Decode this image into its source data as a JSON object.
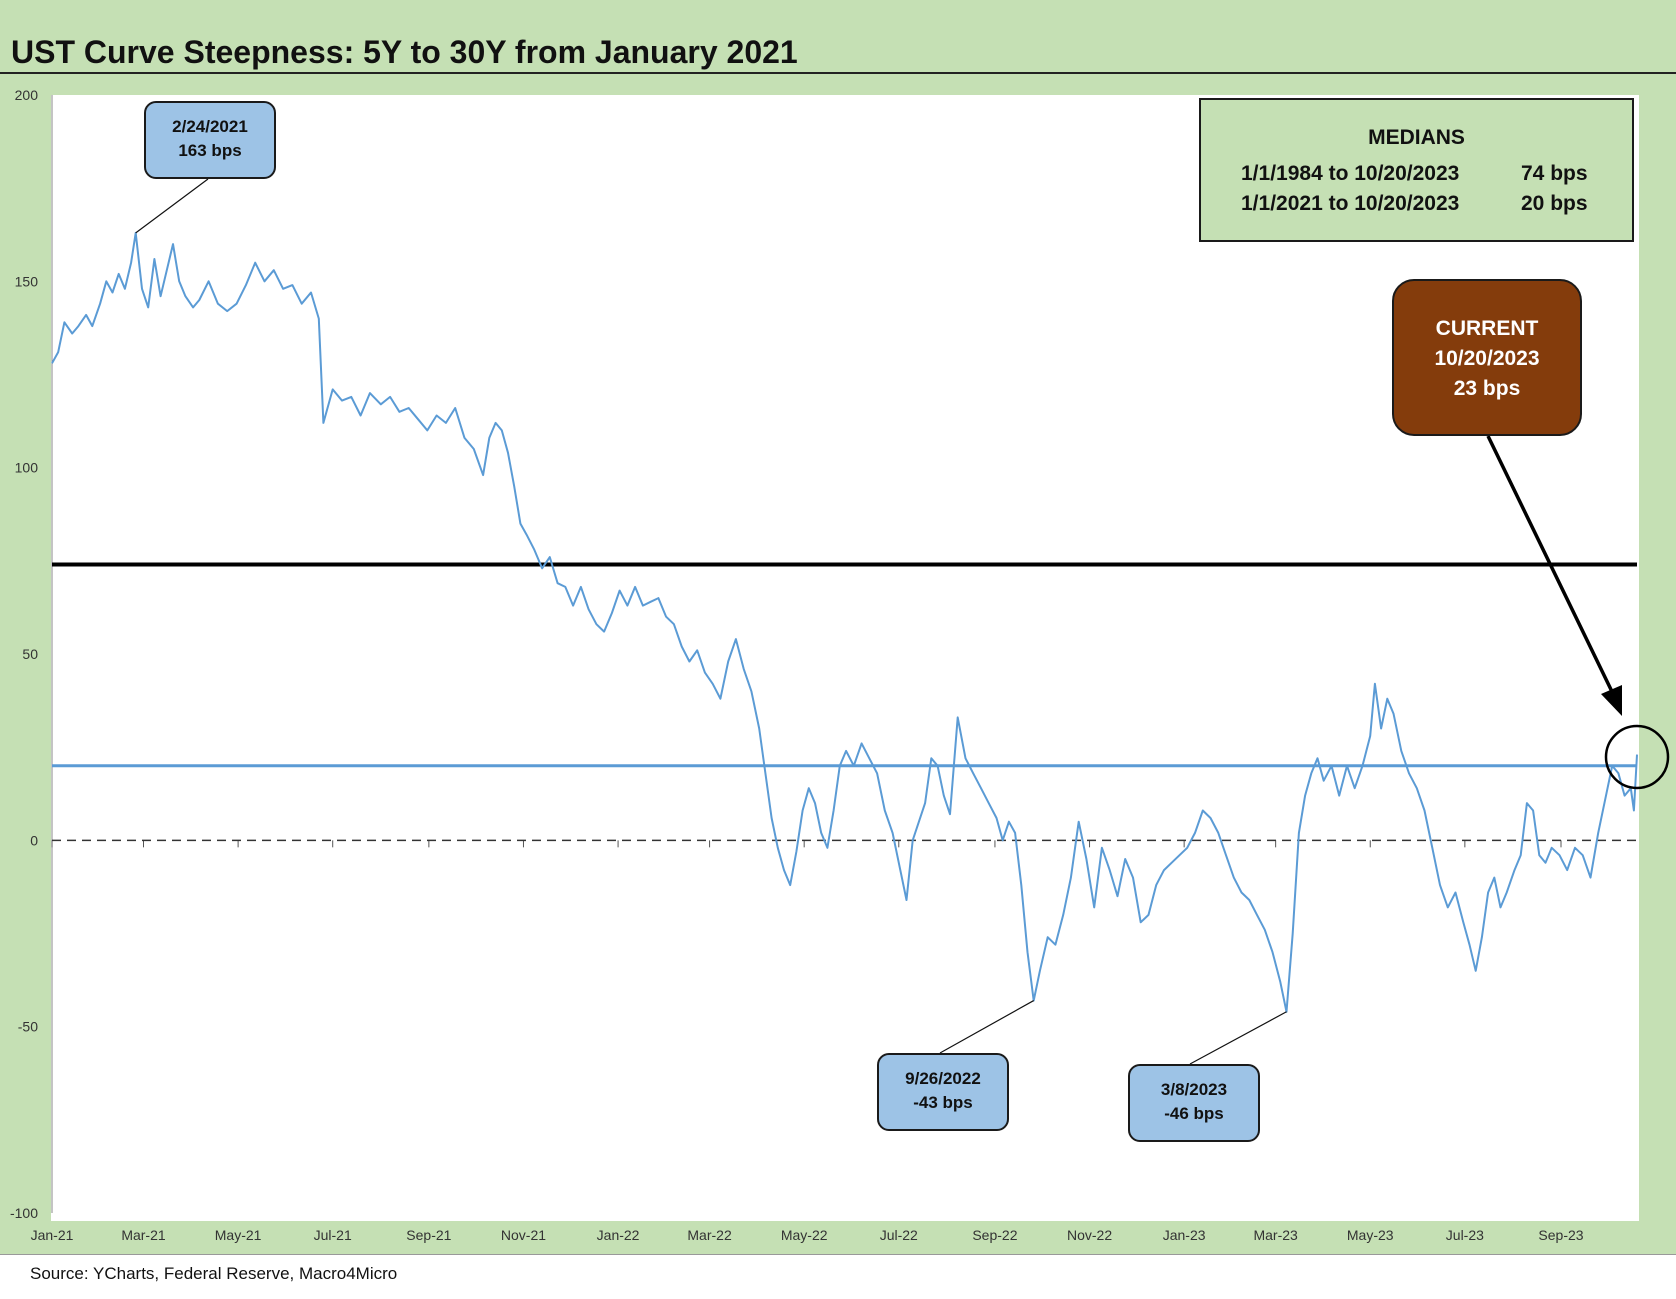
{
  "title": "UST Curve Steepness: 5Y to 30Y from January 2021",
  "source": "Source: YCharts, Federal Reserve, Macro4Micro",
  "colors": {
    "frame": "#c5e0b4",
    "series": "#5b9bd5",
    "median_recent_line": "#5b9bd5",
    "median_long_line": "#000000",
    "callout_fill": "#9dc3e6",
    "current_fill": "#843c0c"
  },
  "medians_box": {
    "title": "MEDIANS",
    "rows": [
      {
        "label": "1/1/1984 to 10/20/2023",
        "value": "74 bps"
      },
      {
        "label": "1/1/2021 to 10/20/2023",
        "value": "20 bps"
      }
    ]
  },
  "current_box": {
    "line1": "CURRENT",
    "line2": "10/20/2023",
    "line3": "23 bps"
  },
  "callouts": [
    {
      "date_label": "2/24/2021",
      "value_label": "163 bps",
      "x": "2021-02-24",
      "y": 163
    },
    {
      "date_label": "9/26/2022",
      "value_label": "-43 bps",
      "x": "2022-09-26",
      "y": -43
    },
    {
      "date_label": "3/8/2023",
      "value_label": "-46 bps",
      "x": "2023-03-08",
      "y": -46
    }
  ],
  "chart_data": {
    "type": "line",
    "title": "UST Curve Steepness: 5Y to 30Y from January 2021",
    "xlabel": "",
    "ylabel": "",
    "ylim": [
      -100,
      200
    ],
    "xlim": [
      "2021-01-01",
      "2023-10-20"
    ],
    "y_ticks": [
      200,
      150,
      100,
      50,
      0,
      -50,
      -100
    ],
    "x_ticks": [
      "Jan-21",
      "Mar-21",
      "May-21",
      "Jul-21",
      "Sep-21",
      "Nov-21",
      "Jan-22",
      "Mar-22",
      "May-22",
      "Jul-22",
      "Sep-22",
      "Nov-22",
      "Jan-23",
      "Mar-23",
      "May-23",
      "Jul-23",
      "Sep-23"
    ],
    "grid": false,
    "reference_lines": [
      {
        "y": 74,
        "style": "solid",
        "color": "#000000"
      },
      {
        "y": 20,
        "style": "solid",
        "color": "#5b9bd5"
      },
      {
        "y": 0,
        "style": "dashed",
        "color": "#333333"
      }
    ],
    "series": [
      {
        "points": [
          [
            "2021-01-01",
            128
          ],
          [
            "2021-01-05",
            131
          ],
          [
            "2021-01-09",
            139
          ],
          [
            "2021-01-14",
            136
          ],
          [
            "2021-01-18",
            138
          ],
          [
            "2021-01-23",
            141
          ],
          [
            "2021-01-27",
            138
          ],
          [
            "2021-02-01",
            144
          ],
          [
            "2021-02-05",
            150
          ],
          [
            "2021-02-09",
            147
          ],
          [
            "2021-02-13",
            152
          ],
          [
            "2021-02-17",
            148
          ],
          [
            "2021-02-21",
            155
          ],
          [
            "2021-02-24",
            163
          ],
          [
            "2021-02-28",
            148
          ],
          [
            "2021-03-04",
            143
          ],
          [
            "2021-03-08",
            156
          ],
          [
            "2021-03-12",
            146
          ],
          [
            "2021-03-16",
            153
          ],
          [
            "2021-03-20",
            160
          ],
          [
            "2021-03-24",
            150
          ],
          [
            "2021-03-28",
            146
          ],
          [
            "2021-04-02",
            143
          ],
          [
            "2021-04-06",
            145
          ],
          [
            "2021-04-12",
            150
          ],
          [
            "2021-04-18",
            144
          ],
          [
            "2021-04-24",
            142
          ],
          [
            "2021-04-30",
            144
          ],
          [
            "2021-05-06",
            149
          ],
          [
            "2021-05-12",
            155
          ],
          [
            "2021-05-18",
            150
          ],
          [
            "2021-05-24",
            153
          ],
          [
            "2021-05-30",
            148
          ],
          [
            "2021-06-05",
            149
          ],
          [
            "2021-06-11",
            144
          ],
          [
            "2021-06-17",
            147
          ],
          [
            "2021-06-22",
            140
          ],
          [
            "2021-06-25",
            112
          ],
          [
            "2021-07-01",
            121
          ],
          [
            "2021-07-07",
            118
          ],
          [
            "2021-07-13",
            119
          ],
          [
            "2021-07-19",
            114
          ],
          [
            "2021-07-25",
            120
          ],
          [
            "2021-08-01",
            117
          ],
          [
            "2021-08-07",
            119
          ],
          [
            "2021-08-13",
            115
          ],
          [
            "2021-08-19",
            116
          ],
          [
            "2021-08-25",
            113
          ],
          [
            "2021-08-31",
            110
          ],
          [
            "2021-09-06",
            114
          ],
          [
            "2021-09-12",
            112
          ],
          [
            "2021-09-18",
            116
          ],
          [
            "2021-09-24",
            108
          ],
          [
            "2021-09-30",
            105
          ],
          [
            "2021-10-06",
            98
          ],
          [
            "2021-10-10",
            108
          ],
          [
            "2021-10-14",
            112
          ],
          [
            "2021-10-18",
            110
          ],
          [
            "2021-10-22",
            104
          ],
          [
            "2021-10-26",
            95
          ],
          [
            "2021-10-30",
            85
          ],
          [
            "2021-11-03",
            82
          ],
          [
            "2021-11-08",
            78
          ],
          [
            "2021-11-13",
            73
          ],
          [
            "2021-11-18",
            76
          ],
          [
            "2021-11-23",
            69
          ],
          [
            "2021-11-28",
            68
          ],
          [
            "2021-12-03",
            63
          ],
          [
            "2021-12-08",
            68
          ],
          [
            "2021-12-13",
            62
          ],
          [
            "2021-12-18",
            58
          ],
          [
            "2021-12-23",
            56
          ],
          [
            "2021-12-28",
            61
          ],
          [
            "2022-01-02",
            67
          ],
          [
            "2022-01-07",
            63
          ],
          [
            "2022-01-12",
            68
          ],
          [
            "2022-01-17",
            63
          ],
          [
            "2022-01-22",
            64
          ],
          [
            "2022-01-27",
            65
          ],
          [
            "2022-02-01",
            60
          ],
          [
            "2022-02-06",
            58
          ],
          [
            "2022-02-11",
            52
          ],
          [
            "2022-02-16",
            48
          ],
          [
            "2022-02-21",
            51
          ],
          [
            "2022-02-26",
            45
          ],
          [
            "2022-03-03",
            42
          ],
          [
            "2022-03-08",
            38
          ],
          [
            "2022-03-13",
            48
          ],
          [
            "2022-03-18",
            54
          ],
          [
            "2022-03-23",
            46
          ],
          [
            "2022-03-28",
            40
          ],
          [
            "2022-04-02",
            30
          ],
          [
            "2022-04-06",
            18
          ],
          [
            "2022-04-10",
            6
          ],
          [
            "2022-04-14",
            -2
          ],
          [
            "2022-04-18",
            -8
          ],
          [
            "2022-04-22",
            -12
          ],
          [
            "2022-04-26",
            -3
          ],
          [
            "2022-04-30",
            8
          ],
          [
            "2022-05-04",
            14
          ],
          [
            "2022-05-08",
            10
          ],
          [
            "2022-05-12",
            2
          ],
          [
            "2022-05-16",
            -2
          ],
          [
            "2022-05-20",
            8
          ],
          [
            "2022-05-24",
            20
          ],
          [
            "2022-05-28",
            24
          ],
          [
            "2022-06-02",
            20
          ],
          [
            "2022-06-07",
            26
          ],
          [
            "2022-06-12",
            22
          ],
          [
            "2022-06-17",
            18
          ],
          [
            "2022-06-22",
            8
          ],
          [
            "2022-06-27",
            2
          ],
          [
            "2022-07-02",
            -8
          ],
          [
            "2022-07-06",
            -16
          ],
          [
            "2022-07-10",
            0
          ],
          [
            "2022-07-14",
            5
          ],
          [
            "2022-07-18",
            10
          ],
          [
            "2022-07-22",
            22
          ],
          [
            "2022-07-26",
            20
          ],
          [
            "2022-07-30",
            12
          ],
          [
            "2022-08-03",
            7
          ],
          [
            "2022-08-08",
            33
          ],
          [
            "2022-08-13",
            22
          ],
          [
            "2022-08-18",
            18
          ],
          [
            "2022-08-23",
            14
          ],
          [
            "2022-08-28",
            10
          ],
          [
            "2022-09-02",
            6
          ],
          [
            "2022-09-06",
            0
          ],
          [
            "2022-09-10",
            5
          ],
          [
            "2022-09-14",
            2
          ],
          [
            "2022-09-18",
            -12
          ],
          [
            "2022-09-22",
            -30
          ],
          [
            "2022-09-26",
            -43
          ],
          [
            "2022-09-30",
            -35
          ],
          [
            "2022-10-05",
            -26
          ],
          [
            "2022-10-10",
            -28
          ],
          [
            "2022-10-15",
            -20
          ],
          [
            "2022-10-20",
            -10
          ],
          [
            "2022-10-25",
            5
          ],
          [
            "2022-10-30",
            -5
          ],
          [
            "2022-11-04",
            -18
          ],
          [
            "2022-11-09",
            -2
          ],
          [
            "2022-11-14",
            -8
          ],
          [
            "2022-11-19",
            -15
          ],
          [
            "2022-11-24",
            -5
          ],
          [
            "2022-11-29",
            -10
          ],
          [
            "2022-12-04",
            -22
          ],
          [
            "2022-12-09",
            -20
          ],
          [
            "2022-12-14",
            -12
          ],
          [
            "2022-12-19",
            -8
          ],
          [
            "2022-12-24",
            -6
          ],
          [
            "2022-12-29",
            -4
          ],
          [
            "2023-01-03",
            -2
          ],
          [
            "2023-01-08",
            2
          ],
          [
            "2023-01-13",
            8
          ],
          [
            "2023-01-18",
            6
          ],
          [
            "2023-01-23",
            2
          ],
          [
            "2023-01-28",
            -4
          ],
          [
            "2023-02-02",
            -10
          ],
          [
            "2023-02-07",
            -14
          ],
          [
            "2023-02-12",
            -16
          ],
          [
            "2023-02-17",
            -20
          ],
          [
            "2023-02-22",
            -24
          ],
          [
            "2023-02-27",
            -30
          ],
          [
            "2023-03-04",
            -38
          ],
          [
            "2023-03-08",
            -46
          ],
          [
            "2023-03-12",
            -25
          ],
          [
            "2023-03-16",
            2
          ],
          [
            "2023-03-20",
            12
          ],
          [
            "2023-03-24",
            18
          ],
          [
            "2023-03-28",
            22
          ],
          [
            "2023-04-01",
            16
          ],
          [
            "2023-04-06",
            20
          ],
          [
            "2023-04-11",
            12
          ],
          [
            "2023-04-16",
            20
          ],
          [
            "2023-04-21",
            14
          ],
          [
            "2023-04-26",
            20
          ],
          [
            "2023-05-01",
            28
          ],
          [
            "2023-05-04",
            42
          ],
          [
            "2023-05-08",
            30
          ],
          [
            "2023-05-12",
            38
          ],
          [
            "2023-05-16",
            34
          ],
          [
            "2023-05-21",
            24
          ],
          [
            "2023-05-26",
            18
          ],
          [
            "2023-05-31",
            14
          ],
          [
            "2023-06-05",
            8
          ],
          [
            "2023-06-10",
            -2
          ],
          [
            "2023-06-15",
            -12
          ],
          [
            "2023-06-20",
            -18
          ],
          [
            "2023-06-25",
            -14
          ],
          [
            "2023-06-30",
            -22
          ],
          [
            "2023-07-04",
            -28
          ],
          [
            "2023-07-08",
            -35
          ],
          [
            "2023-07-12",
            -26
          ],
          [
            "2023-07-16",
            -14
          ],
          [
            "2023-07-20",
            -10
          ],
          [
            "2023-07-24",
            -18
          ],
          [
            "2023-07-28",
            -14
          ],
          [
            "2023-08-02",
            -8
          ],
          [
            "2023-08-06",
            -4
          ],
          [
            "2023-08-10",
            10
          ],
          [
            "2023-08-14",
            8
          ],
          [
            "2023-08-18",
            -4
          ],
          [
            "2023-08-22",
            -6
          ],
          [
            "2023-08-26",
            -2
          ],
          [
            "2023-08-31",
            -4
          ],
          [
            "2023-09-05",
            -8
          ],
          [
            "2023-09-10",
            -2
          ],
          [
            "2023-09-15",
            -4
          ],
          [
            "2023-09-20",
            -10
          ],
          [
            "2023-09-25",
            2
          ],
          [
            "2023-09-30",
            12
          ],
          [
            "2023-10-04",
            20
          ],
          [
            "2023-10-08",
            18
          ],
          [
            "2023-10-12",
            12
          ],
          [
            "2023-10-16",
            14
          ],
          [
            "2023-10-18",
            8
          ],
          [
            "2023-10-20",
            23
          ]
        ]
      }
    ]
  }
}
